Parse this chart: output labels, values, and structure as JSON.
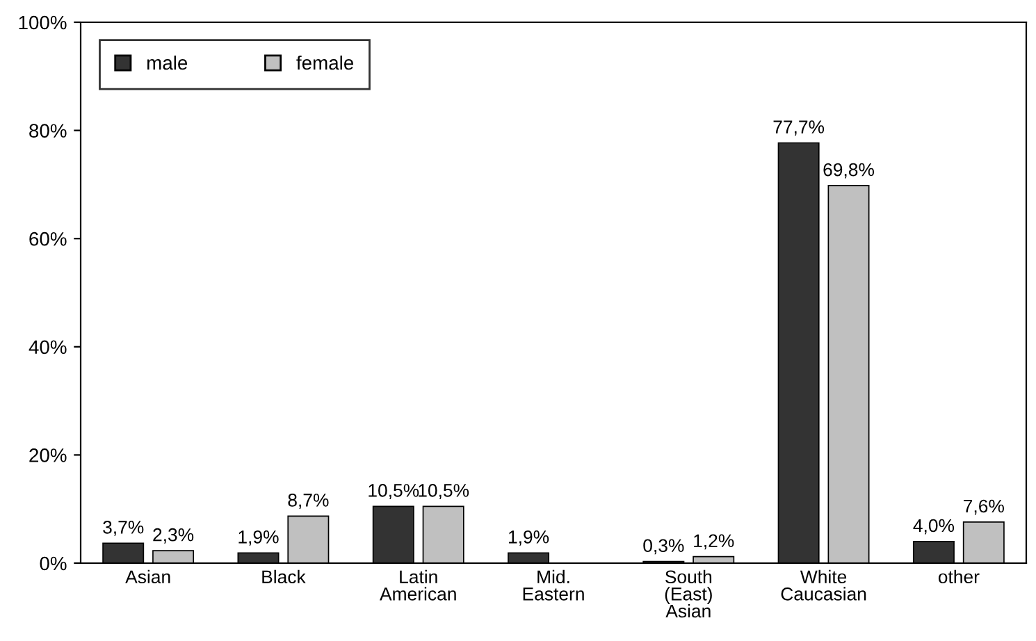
{
  "chart_data": {
    "type": "bar",
    "categories": [
      "Asian",
      "Black",
      "Latin\nAmerican",
      "Mid.\nEastern",
      "South\n(East)\nAsian",
      "White\nCaucasian",
      "other"
    ],
    "series": [
      {
        "name": "male",
        "color": "#333333",
        "values": [
          3.7,
          1.9,
          10.5,
          1.9,
          0.3,
          77.7,
          4.0
        ],
        "value_labels": [
          "3,7%",
          "1,9%",
          "10,5%",
          "1,9%",
          "0,3%",
          "77,7%",
          "4,0%"
        ]
      },
      {
        "name": "female",
        "color": "#c0c0c0",
        "values": [
          2.3,
          8.7,
          10.5,
          null,
          1.2,
          69.8,
          7.6
        ],
        "value_labels": [
          "2,3%",
          "8,7%",
          "10,5%",
          null,
          "1,2%",
          "69,8%",
          "7,6%"
        ]
      }
    ],
    "ylim": [
      0,
      100
    ],
    "yticks": [
      {
        "value": 0,
        "label": "0%"
      },
      {
        "value": 20,
        "label": "20%"
      },
      {
        "value": 40,
        "label": "40%"
      },
      {
        "value": 60,
        "label": "60%"
      },
      {
        "value": 80,
        "label": "80%"
      },
      {
        "value": 100,
        "label": "100%"
      }
    ],
    "grid": false,
    "legend": "top left"
  }
}
